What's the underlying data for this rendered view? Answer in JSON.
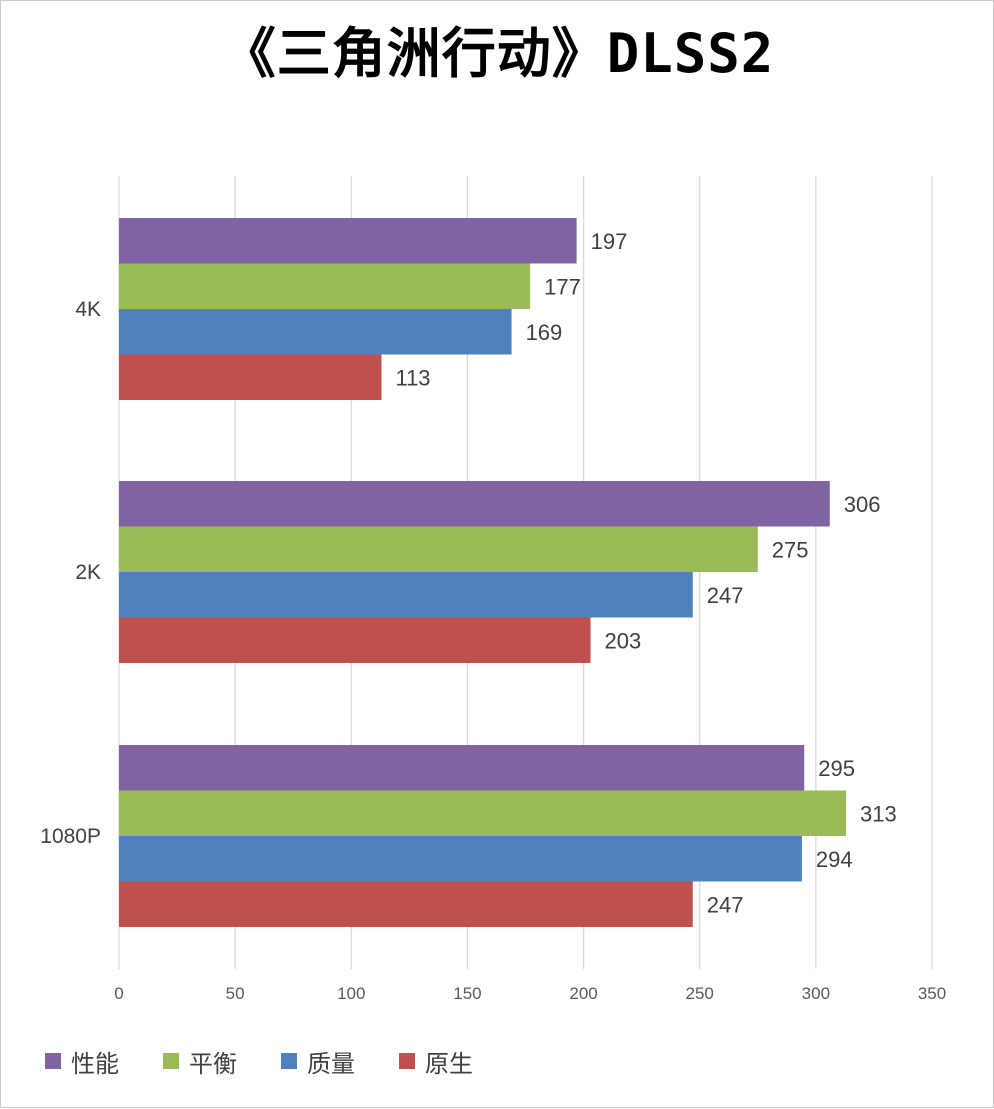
{
  "chart_data": {
    "type": "bar",
    "orientation": "horizontal",
    "title": "《三角洲行动》DLSS2",
    "categories": [
      "4K",
      "2K",
      "1080P"
    ],
    "series": [
      {
        "name": "性能",
        "color": "#8064A2",
        "values": [
          197,
          306,
          295
        ]
      },
      {
        "name": "平衡",
        "color": "#9BBB59",
        "values": [
          177,
          275,
          313
        ]
      },
      {
        "name": "质量",
        "color": "#4F81BD",
        "values": [
          169,
          247,
          294
        ]
      },
      {
        "name": "原生",
        "color": "#C0504D",
        "values": [
          113,
          203,
          247
        ]
      }
    ],
    "xlim": [
      0,
      350
    ],
    "xticks": [
      0,
      50,
      100,
      150,
      200,
      250,
      300,
      350
    ],
    "grid": true,
    "legend_position": "bottom-left",
    "xlabel": "",
    "ylabel": ""
  }
}
